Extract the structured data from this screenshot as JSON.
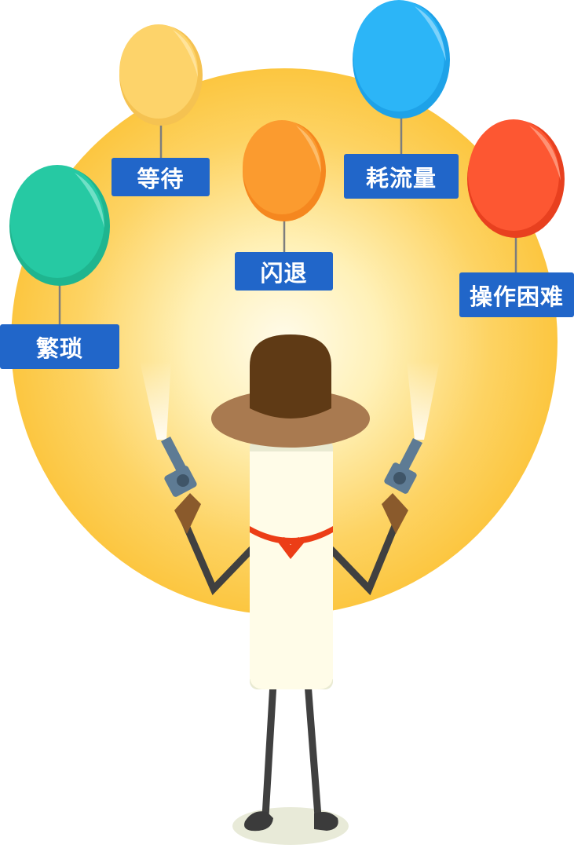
{
  "colors": {
    "sun_outer": "#fcc640",
    "sun_inner": "#fffbea",
    "tag_bg": "#2166c9",
    "tag_text": "#ffffff",
    "balloon_green": "#26c9a3",
    "balloon_yellow": "#fdd36a",
    "balloon_orange": "#fb9b2f",
    "balloon_blue": "#2cb5f7",
    "balloon_red": "#fd5732",
    "hat": "#5f3a15",
    "hat_brim": "#a97a50",
    "body": "#fffce8",
    "scarf": "#ec3d16",
    "gun": "#5e7b94"
  },
  "labels": {
    "fanzao": "繁琐",
    "dengdai": "等待",
    "shantui": "闪退",
    "haoliu": "耗流量",
    "caozuo": "操作困难"
  }
}
